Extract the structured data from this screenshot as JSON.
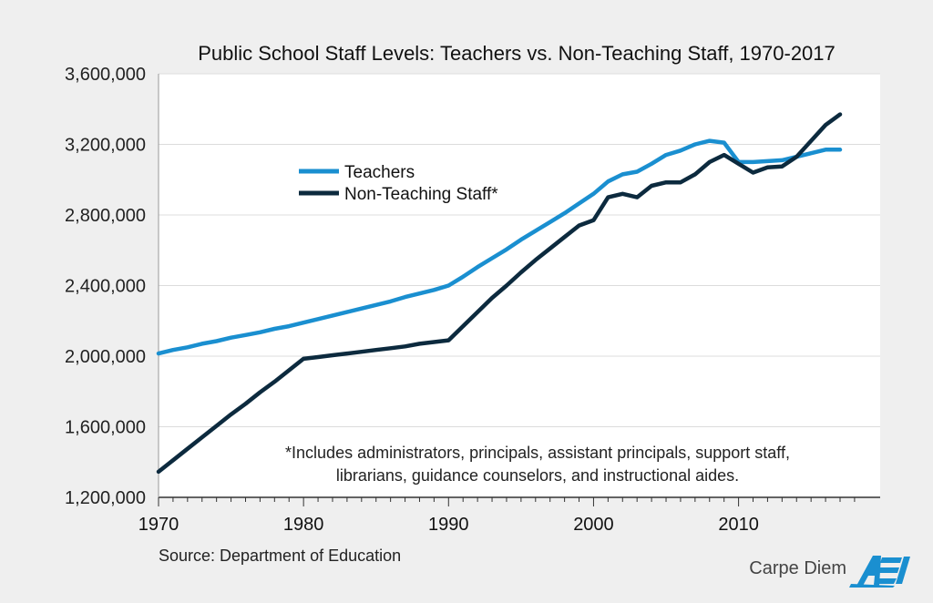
{
  "chart_data": {
    "type": "line",
    "title": "Public School Staff Levels: Teachers vs. Non-Teaching Staff, 1970-2017",
    "xlabel": "",
    "ylabel": "",
    "xlim": [
      1970,
      2017
    ],
    "ylim": [
      1200000,
      3600000
    ],
    "x_ticks": [
      "1970",
      "1980",
      "1990",
      "2000",
      "2010"
    ],
    "y_ticks": [
      "1,200,000",
      "1,600,000",
      "2,000,000",
      "2,400,000",
      "2,800,000",
      "3,200,000",
      "3,600,000"
    ],
    "grid": "horizontal",
    "legend_placement": "upper-left",
    "x": [
      1970,
      1971,
      1972,
      1973,
      1974,
      1975,
      1976,
      1977,
      1978,
      1979,
      1980,
      1981,
      1982,
      1983,
      1984,
      1985,
      1986,
      1987,
      1988,
      1989,
      1990,
      1991,
      1992,
      1993,
      1994,
      1995,
      1996,
      1997,
      1998,
      1999,
      2000,
      2001,
      2002,
      2003,
      2004,
      2005,
      2006,
      2007,
      2008,
      2009,
      2010,
      2011,
      2012,
      2013,
      2014,
      2015,
      2016,
      2017
    ],
    "series": [
      {
        "name": "Teachers",
        "color": "#1a8fd0",
        "values": [
          2015000,
          2035000,
          2050000,
          2070000,
          2085000,
          2105000,
          2120000,
          2135000,
          2155000,
          2170000,
          2190000,
          2210000,
          2230000,
          2250000,
          2270000,
          2290000,
          2310000,
          2335000,
          2355000,
          2375000,
          2400000,
          2450000,
          2505000,
          2555000,
          2605000,
          2660000,
          2710000,
          2760000,
          2810000,
          2865000,
          2920000,
          2990000,
          3030000,
          3045000,
          3090000,
          3140000,
          3165000,
          3200000,
          3220000,
          3210000,
          3100000,
          3100000,
          3105000,
          3110000,
          3130000,
          3150000,
          3170000,
          3170000
        ]
      },
      {
        "name": "Non-Teaching Staff*",
        "color": "#0c2a3e",
        "values": [
          1345000,
          1410000,
          1475000,
          1540000,
          1605000,
          1670000,
          1730000,
          1795000,
          1855000,
          1920000,
          1985000,
          1995000,
          2005000,
          2015000,
          2025000,
          2035000,
          2045000,
          2055000,
          2070000,
          2080000,
          2090000,
          2170000,
          2250000,
          2330000,
          2400000,
          2475000,
          2545000,
          2610000,
          2675000,
          2740000,
          2770000,
          2900000,
          2920000,
          2900000,
          2965000,
          2985000,
          2985000,
          3030000,
          3100000,
          3140000,
          3090000,
          3040000,
          3070000,
          3075000,
          3130000,
          3220000,
          3310000,
          3370000
        ]
      }
    ],
    "annotation": [
      "*Includes administrators, principals, assistant principals, support staff,",
      "librarians, guidance counselors, and instructional aides."
    ],
    "source": "Source: Department of Education"
  },
  "branding": {
    "text": "Carpe Diem",
    "logo": "AEI",
    "logo_color": "#1a8fd0"
  }
}
